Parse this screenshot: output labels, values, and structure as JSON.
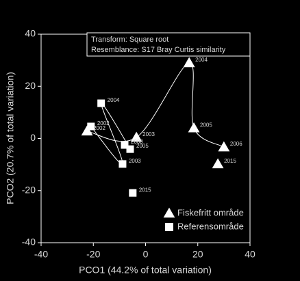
{
  "chart_data": {
    "type": "scatter",
    "annotation": [
      "Transform: Square root",
      "Resemblance: S17 Bray Curtis similarity"
    ],
    "xlabel": "PCO1 (44.2% of total variation)",
    "ylabel": "PCO2 (20.7% of total variation)",
    "xlim": [
      -40,
      40
    ],
    "ylim": [
      -40,
      40
    ],
    "xticks": [
      -40,
      -20,
      0,
      20,
      40
    ],
    "yticks": [
      -40,
      -20,
      0,
      20,
      40
    ],
    "legend": "lower right",
    "series": [
      {
        "name": "Fiskefritt område",
        "marker": "triangle",
        "color": "#ffffff",
        "labels": [
          "2002",
          "2003",
          "2004",
          "2005",
          "2006",
          "2015"
        ],
        "x": [
          -22.4,
          -3.5,
          16.7,
          18.5,
          30,
          27.7
        ],
        "values": [
          2.8,
          0.4,
          29,
          4,
          -3.3,
          -9.8
        ]
      },
      {
        "name": "Referensområde",
        "marker": "square",
        "color": "#ffffff",
        "labels": [
          "2002",
          "2003",
          "2004",
          "2005",
          "2008",
          "2015"
        ],
        "x": [
          -20.9,
          -8.8,
          -17,
          -5.9,
          -8,
          -4.9
        ],
        "values": [
          4.6,
          -9.8,
          13.5,
          -4.1,
          -2.5,
          -20.9
        ]
      }
    ]
  }
}
